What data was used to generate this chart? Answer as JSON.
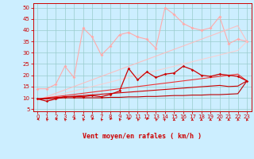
{
  "background_color": "#cceeff",
  "grid_color": "#99cccc",
  "x": [
    0,
    1,
    2,
    3,
    4,
    5,
    6,
    7,
    8,
    9,
    10,
    11,
    12,
    13,
    14,
    15,
    16,
    17,
    18,
    19,
    20,
    21,
    22,
    23
  ],
  "series": [
    {
      "color": "#ffaaaa",
      "alpha": 1.0,
      "lw": 0.8,
      "marker": "D",
      "ms": 2.0,
      "y": [
        14,
        14,
        16,
        24,
        19,
        41,
        37,
        29,
        33,
        38,
        39,
        37,
        36,
        32,
        50,
        47,
        43,
        41,
        40,
        41,
        46,
        34,
        36,
        35
      ]
    },
    {
      "color": "#ffbbbb",
      "alpha": 0.9,
      "lw": 0.8,
      "marker": null,
      "ms": 0,
      "y": [
        9,
        10.5,
        12,
        13.5,
        15,
        16.5,
        18,
        19.5,
        21,
        22.5,
        24,
        25.5,
        27,
        28.5,
        30,
        31.5,
        33,
        34.5,
        36,
        37.5,
        39,
        40.5,
        42,
        35
      ]
    },
    {
      "color": "#ffcccc",
      "alpha": 0.85,
      "lw": 0.8,
      "marker": null,
      "ms": 0,
      "y": [
        9,
        10.0,
        11.0,
        12.0,
        13.0,
        14.0,
        15.0,
        16.0,
        17.0,
        18.0,
        19.0,
        20.0,
        21.0,
        22.0,
        23.0,
        24.0,
        25.0,
        26.0,
        27.0,
        28.0,
        29.0,
        30.0,
        31.0,
        35
      ]
    },
    {
      "color": "#ee3333",
      "alpha": 1.0,
      "lw": 0.8,
      "marker": null,
      "ms": 0,
      "y": [
        9.5,
        10.0,
        10.5,
        11.0,
        11.5,
        12.0,
        12.5,
        13.0,
        13.5,
        14.0,
        14.5,
        15.0,
        15.5,
        16.0,
        16.5,
        17.0,
        17.5,
        18.0,
        18.5,
        19.0,
        19.5,
        20.0,
        20.5,
        17.5
      ]
    },
    {
      "color": "#cc0000",
      "alpha": 1.0,
      "lw": 0.8,
      "marker": null,
      "ms": 0,
      "y": [
        9.5,
        9.8,
        10.1,
        10.4,
        10.7,
        11.0,
        11.3,
        11.6,
        11.9,
        12.2,
        12.5,
        12.8,
        13.1,
        13.4,
        13.7,
        14.0,
        14.3,
        14.6,
        14.9,
        15.2,
        15.5,
        15.0,
        15.2,
        17.5
      ]
    },
    {
      "color": "#bb0000",
      "alpha": 1.0,
      "lw": 0.8,
      "marker": null,
      "ms": 0,
      "y": [
        9.5,
        9.5,
        9.8,
        10.0,
        10.0,
        10.0,
        10.0,
        10.0,
        10.2,
        10.2,
        10.4,
        10.4,
        10.6,
        10.6,
        10.8,
        11.0,
        11.0,
        11.2,
        11.2,
        11.4,
        11.4,
        11.6,
        11.8,
        17.5
      ]
    },
    {
      "color": "#cc0000",
      "alpha": 1.0,
      "lw": 0.9,
      "marker": "D",
      "ms": 1.8,
      "y": [
        9.5,
        8.5,
        9.5,
        10.5,
        10.5,
        10.5,
        11.0,
        10.5,
        11.5,
        13.0,
        23.0,
        18.0,
        21.5,
        19.0,
        20.5,
        21.0,
        24.0,
        22.5,
        20.0,
        19.5,
        20.5,
        20.0,
        19.5,
        17.5
      ]
    }
  ],
  "wind_arrows": [
    270,
    315,
    270,
    315,
    225,
    315,
    225,
    315,
    225,
    315,
    225,
    315,
    225,
    315,
    45,
    0,
    0,
    0,
    0,
    0,
    345,
    0,
    345,
    345
  ],
  "ylim": [
    4,
    52
  ],
  "xlim": [
    -0.5,
    23.5
  ],
  "yticks": [
    5,
    10,
    15,
    20,
    25,
    30,
    35,
    40,
    45,
    50
  ],
  "xticks": [
    0,
    1,
    2,
    3,
    4,
    5,
    6,
    7,
    8,
    9,
    10,
    11,
    12,
    13,
    14,
    15,
    16,
    17,
    18,
    19,
    20,
    21,
    22,
    23
  ],
  "xlabel": "Vent moyen/en rafales ( km/h )",
  "red_color": "#cc0000"
}
